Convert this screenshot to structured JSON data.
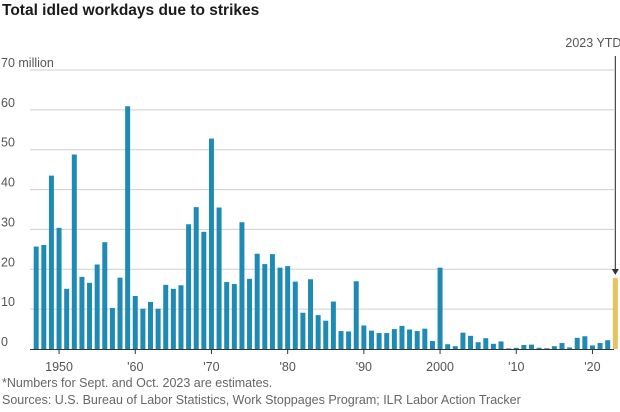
{
  "header": {
    "title": "Total idled workdays due to strikes"
  },
  "footer": {
    "note": "*Numbers for Sept. and Oct. 2023 are estimates.",
    "source": "Sources: U.S. Bureau of Labor Statistics, Work Stoppages Program; ILR Labor Action Tracker"
  },
  "colors": {
    "bar": "#1f8bb5",
    "highlight": "#e7c35b",
    "grid": "#cfcfcf",
    "axis": "#333333",
    "tick_text": "#555555"
  },
  "chart_data": {
    "type": "bar",
    "title": "Total idled workdays due to strikes",
    "xlabel": "",
    "ylabel": "",
    "unit": "million",
    "ylim": [
      0,
      70
    ],
    "yticks": [
      0,
      10,
      20,
      30,
      40,
      50,
      60,
      70
    ],
    "ytick_labels": [
      "0",
      "10",
      "20",
      "30",
      "40",
      "50",
      "60",
      "70 million"
    ],
    "xlim": [
      1947,
      2023
    ],
    "xticks": [
      1950,
      1960,
      1970,
      1980,
      1990,
      2000,
      2010,
      2020
    ],
    "xtick_labels": [
      "1950",
      "'60",
      "'70",
      "'80",
      "'90",
      "2000",
      "'10",
      "'20"
    ],
    "grid": true,
    "annotation": {
      "label": "2023 YTD*",
      "year": 2023
    },
    "highlight_year": 2023,
    "years": [
      1947,
      1948,
      1949,
      1950,
      1951,
      1952,
      1953,
      1954,
      1955,
      1956,
      1957,
      1958,
      1959,
      1960,
      1961,
      1962,
      1963,
      1964,
      1965,
      1966,
      1967,
      1968,
      1969,
      1970,
      1971,
      1972,
      1973,
      1974,
      1975,
      1976,
      1977,
      1978,
      1979,
      1980,
      1981,
      1982,
      1983,
      1984,
      1985,
      1986,
      1987,
      1988,
      1989,
      1990,
      1991,
      1992,
      1993,
      1994,
      1995,
      1996,
      1997,
      1998,
      1999,
      2000,
      2001,
      2002,
      2003,
      2004,
      2005,
      2006,
      2007,
      2008,
      2009,
      2010,
      2011,
      2012,
      2013,
      2014,
      2015,
      2016,
      2017,
      2018,
      2019,
      2020,
      2021,
      2022,
      2023
    ],
    "values": [
      25.7,
      26.1,
      43.5,
      30.4,
      15.1,
      48.8,
      18.1,
      16.6,
      21.2,
      26.8,
      10.3,
      17.9,
      60.9,
      13.3,
      10.1,
      11.8,
      10.1,
      16.1,
      15.1,
      16.0,
      31.3,
      35.6,
      29.4,
      52.8,
      35.5,
      16.8,
      16.3,
      31.8,
      17.6,
      23.9,
      21.3,
      23.8,
      20.4,
      20.8,
      16.9,
      9.1,
      17.5,
      8.5,
      7.1,
      11.9,
      4.5,
      4.4,
      17.0,
      5.9,
      4.6,
      4.0,
      4.0,
      5.0,
      5.8,
      4.9,
      4.5,
      5.1,
      2.0,
      20.4,
      1.2,
      0.7,
      4.1,
      3.3,
      1.7,
      2.7,
      1.3,
      1.9,
      0.1,
      0.3,
      1.0,
      1.1,
      0.3,
      0.2,
      0.7,
      1.5,
      0.4,
      2.8,
      3.2,
      0.9,
      1.5,
      2.2,
      17.8
    ]
  }
}
